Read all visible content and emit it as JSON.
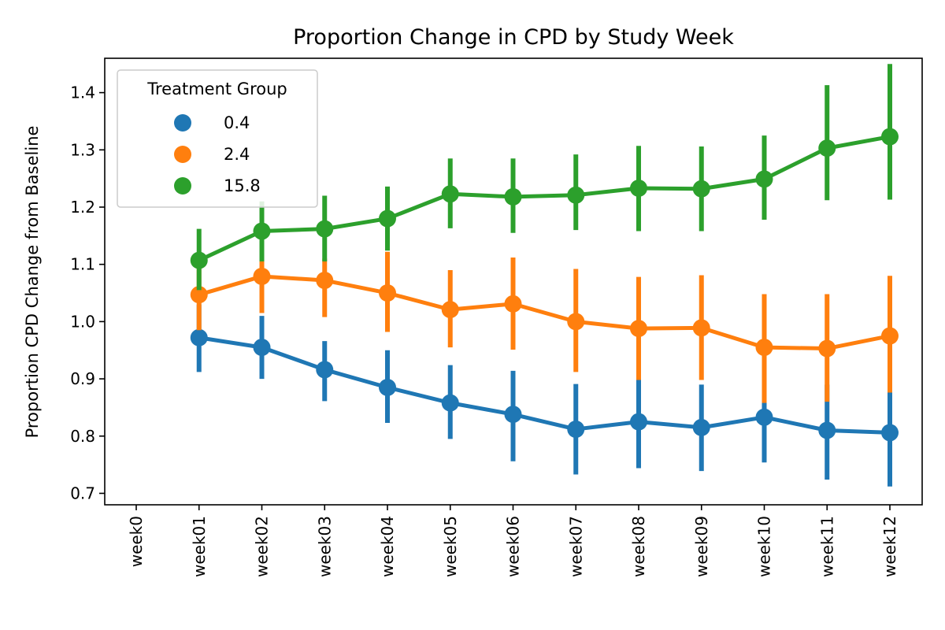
{
  "chart_data": {
    "type": "line",
    "title": "Proportion Change in CPD by Study Week",
    "xlabel": "",
    "ylabel": "Proportion CPD Change from Baseline",
    "categories": [
      "week0",
      "week01",
      "week02",
      "week03",
      "week04",
      "week05",
      "week06",
      "week07",
      "week08",
      "week09",
      "week10",
      "week11",
      "week12"
    ],
    "ylim": [
      0.68,
      1.46
    ],
    "yticks": [
      0.7,
      0.8,
      0.9,
      1.0,
      1.1,
      1.2,
      1.3,
      1.4
    ],
    "ytick_labels": [
      "0.7",
      "0.8",
      "0.9",
      "1.0",
      "1.1",
      "1.2",
      "1.3",
      "1.4"
    ],
    "grid": false,
    "legend": {
      "title": "Treatment Group",
      "placement": "top-left"
    },
    "series": [
      {
        "name": "0.4",
        "color": "#1f77b4",
        "values": [
          null,
          0.972,
          0.955,
          0.916,
          0.885,
          0.858,
          0.838,
          0.812,
          0.825,
          0.815,
          0.833,
          0.81,
          0.806
        ],
        "ci_low": [
          null,
          0.912,
          0.9,
          0.861,
          0.823,
          0.795,
          0.756,
          0.733,
          0.744,
          0.739,
          0.754,
          0.724,
          0.712
        ],
        "ci_high": [
          null,
          1.03,
          1.01,
          0.966,
          0.95,
          0.924,
          0.914,
          0.891,
          0.898,
          0.89,
          0.915,
          0.89,
          0.88
        ]
      },
      {
        "name": "2.4",
        "color": "#ff7f0e",
        "values": [
          null,
          1.047,
          1.079,
          1.072,
          1.05,
          1.021,
          1.031,
          1.0,
          0.988,
          0.989,
          0.955,
          0.953,
          0.975
        ],
        "ci_low": [
          null,
          0.985,
          1.015,
          1.008,
          0.982,
          0.955,
          0.951,
          0.912,
          0.898,
          0.898,
          0.858,
          0.86,
          0.876
        ],
        "ci_high": [
          null,
          1.11,
          1.14,
          1.11,
          1.122,
          1.09,
          1.112,
          1.092,
          1.078,
          1.081,
          1.048,
          1.048,
          1.08
        ]
      },
      {
        "name": "15.8",
        "color": "#2ca02c",
        "values": [
          null,
          1.107,
          1.158,
          1.162,
          1.18,
          1.223,
          1.218,
          1.221,
          1.233,
          1.232,
          1.249,
          1.303,
          1.323
        ],
        "ci_low": [
          null,
          1.055,
          1.105,
          1.105,
          1.124,
          1.163,
          1.155,
          1.16,
          1.158,
          1.158,
          1.178,
          1.212,
          1.213
        ],
        "ci_high": [
          null,
          1.162,
          1.21,
          1.22,
          1.236,
          1.285,
          1.285,
          1.292,
          1.307,
          1.306,
          1.325,
          1.413,
          1.45
        ]
      }
    ]
  }
}
